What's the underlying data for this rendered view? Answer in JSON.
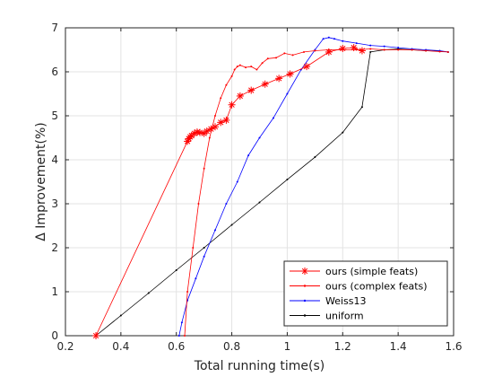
{
  "chart_data": {
    "type": "line",
    "title": "",
    "xlabel": "Total running time(s)",
    "ylabel": "Δ Improvement(%)",
    "xlim": [
      0.2,
      1.6
    ],
    "ylim": [
      0,
      7
    ],
    "xticks": [
      0.2,
      0.4,
      0.6,
      0.8,
      1.0,
      1.2,
      1.4,
      1.6
    ],
    "xtick_labels": [
      "0.2",
      "0.4",
      "0.6",
      "0.8",
      "1",
      "1.2",
      "1.4",
      "1.6"
    ],
    "yticks": [
      0,
      1,
      2,
      3,
      4,
      5,
      6,
      7
    ],
    "ytick_labels": [
      "0",
      "1",
      "2",
      "3",
      "4",
      "5",
      "6",
      "7"
    ],
    "grid": true,
    "legend_position": "bottom-right",
    "series": [
      {
        "name": "ours (simple feats)",
        "color": "#ff0000",
        "marker": "asterisk",
        "x": [
          0.31,
          0.64,
          0.645,
          0.65,
          0.655,
          0.665,
          0.675,
          0.685,
          0.7,
          0.71,
          0.725,
          0.74,
          0.76,
          0.78,
          0.8,
          0.83,
          0.87,
          0.92,
          0.97,
          1.01,
          1.07,
          1.15,
          1.2,
          1.24,
          1.27
        ],
        "y": [
          0,
          4.42,
          4.48,
          4.52,
          4.55,
          4.6,
          4.63,
          4.62,
          4.6,
          4.65,
          4.7,
          4.75,
          4.85,
          4.9,
          5.25,
          5.45,
          5.58,
          5.72,
          5.85,
          5.95,
          6.12,
          6.45,
          6.53,
          6.55,
          6.48
        ]
      },
      {
        "name": "ours (complex feats)",
        "color": "#ff0000",
        "marker": "dot",
        "x": [
          0.63,
          0.64,
          0.66,
          0.68,
          0.7,
          0.72,
          0.74,
          0.76,
          0.78,
          0.8,
          0.81,
          0.82,
          0.83,
          0.85,
          0.87,
          0.89,
          0.91,
          0.93,
          0.96,
          0.99,
          1.02,
          1.06,
          1.1,
          1.15,
          1.2,
          1.25,
          1.3,
          1.35,
          1.4,
          1.45,
          1.5,
          1.55,
          1.58
        ],
        "y": [
          0,
          1.0,
          2.0,
          3.0,
          3.8,
          4.5,
          5.0,
          5.4,
          5.7,
          5.9,
          6.05,
          6.12,
          6.15,
          6.1,
          6.12,
          6.05,
          6.2,
          6.3,
          6.32,
          6.42,
          6.38,
          6.45,
          6.48,
          6.5,
          6.5,
          6.5,
          6.52,
          6.5,
          6.5,
          6.5,
          6.48,
          6.46,
          6.45
        ]
      },
      {
        "name": "Weiss13",
        "color": "#0000ff",
        "marker": "dot",
        "x": [
          0.61,
          0.62,
          0.64,
          0.67,
          0.7,
          0.74,
          0.78,
          0.82,
          0.86,
          0.9,
          0.95,
          1.0,
          1.05,
          1.1,
          1.13,
          1.15,
          1.17,
          1.2,
          1.25,
          1.3,
          1.35,
          1.4,
          1.45,
          1.5,
          1.55,
          1.58
        ],
        "y": [
          0,
          0.3,
          0.8,
          1.3,
          1.8,
          2.4,
          3.0,
          3.5,
          4.1,
          4.5,
          4.95,
          5.5,
          6.05,
          6.5,
          6.75,
          6.78,
          6.75,
          6.7,
          6.65,
          6.6,
          6.58,
          6.55,
          6.52,
          6.5,
          6.48,
          6.45
        ]
      },
      {
        "name": "uniform",
        "color": "#000000",
        "marker": "dot",
        "x": [
          0.31,
          0.4,
          0.5,
          0.6,
          0.7,
          0.8,
          0.9,
          1.0,
          1.1,
          1.2,
          1.27,
          1.3,
          1.35,
          1.4,
          1.45,
          1.5,
          1.55,
          1.58
        ],
        "y": [
          0,
          0.46,
          0.97,
          1.49,
          2.0,
          2.52,
          3.03,
          3.55,
          4.06,
          4.62,
          5.2,
          6.45,
          6.5,
          6.52,
          6.5,
          6.48,
          6.47,
          6.45
        ]
      }
    ]
  }
}
